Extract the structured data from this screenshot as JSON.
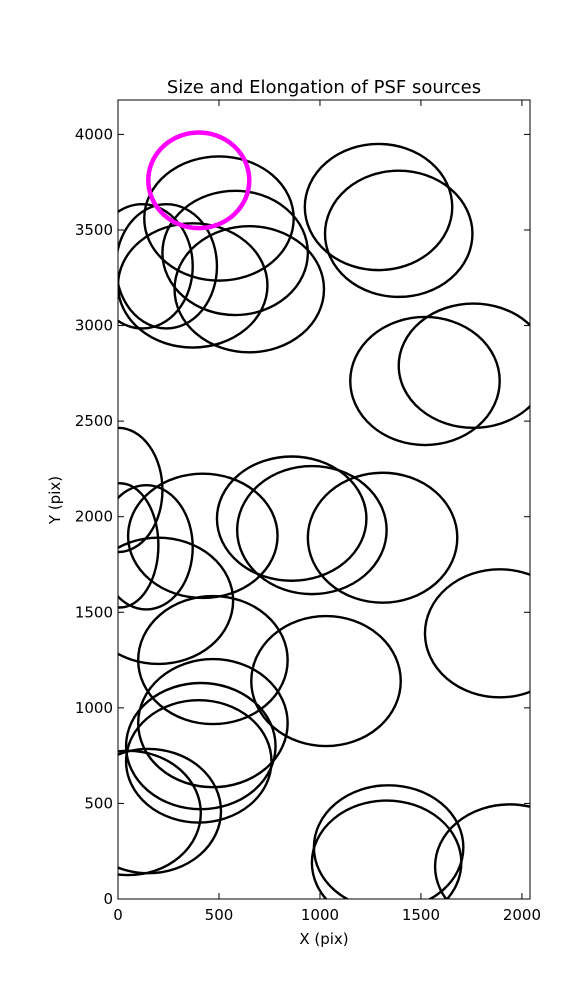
{
  "chart_data": {
    "type": "scatter",
    "title": "Size and Elongation of PSF sources",
    "xlabel": "X (pix)",
    "ylabel": "Y (pix)",
    "xlim": [
      0,
      2040
    ],
    "ylim": [
      0,
      4180
    ],
    "xticks": [
      0,
      500,
      1000,
      1500,
      2000
    ],
    "yticks": [
      0,
      500,
      1000,
      1500,
      2000,
      2500,
      3000,
      3500,
      4000
    ],
    "highlight_color": "#ff00ff",
    "source_color": "#000000",
    "sources": [
      {
        "x": 500,
        "y": 3560,
        "w": 740,
        "h": 650
      },
      {
        "x": 580,
        "y": 3380,
        "w": 720,
        "h": 650
      },
      {
        "x": 370,
        "y": 3210,
        "w": 740,
        "h": 650
      },
      {
        "x": 120,
        "y": 3310,
        "w": 500,
        "h": 650
      },
      {
        "x": 240,
        "y": 3310,
        "w": 500,
        "h": 650
      },
      {
        "x": 650,
        "y": 3190,
        "w": 740,
        "h": 660
      },
      {
        "x": 1290,
        "y": 3620,
        "w": 730,
        "h": 660
      },
      {
        "x": 1390,
        "y": 3480,
        "w": 730,
        "h": 660
      },
      {
        "x": 1520,
        "y": 2710,
        "w": 740,
        "h": 670
      },
      {
        "x": 1760,
        "y": 2790,
        "w": 740,
        "h": 650
      },
      {
        "x": 0,
        "y": 2140,
        "w": 440,
        "h": 650
      },
      {
        "x": 10,
        "y": 1850,
        "w": 380,
        "h": 650
      },
      {
        "x": 140,
        "y": 1840,
        "w": 460,
        "h": 650
      },
      {
        "x": 420,
        "y": 1900,
        "w": 740,
        "h": 650
      },
      {
        "x": 200,
        "y": 1560,
        "w": 740,
        "h": 660
      },
      {
        "x": 860,
        "y": 1990,
        "w": 740,
        "h": 650
      },
      {
        "x": 960,
        "y": 1930,
        "w": 740,
        "h": 670
      },
      {
        "x": 1310,
        "y": 1890,
        "w": 740,
        "h": 680
      },
      {
        "x": 1890,
        "y": 1390,
        "w": 740,
        "h": 670
      },
      {
        "x": 470,
        "y": 1250,
        "w": 740,
        "h": 670
      },
      {
        "x": 1030,
        "y": 1140,
        "w": 740,
        "h": 680
      },
      {
        "x": 470,
        "y": 920,
        "w": 740,
        "h": 670
      },
      {
        "x": 410,
        "y": 800,
        "w": 740,
        "h": 660
      },
      {
        "x": 400,
        "y": 720,
        "w": 720,
        "h": 640
      },
      {
        "x": 150,
        "y": 460,
        "w": 720,
        "h": 650
      },
      {
        "x": 50,
        "y": 450,
        "w": 720,
        "h": 650
      },
      {
        "x": 1340,
        "y": 270,
        "w": 740,
        "h": 650
      },
      {
        "x": 1330,
        "y": 190,
        "w": 740,
        "h": 650
      },
      {
        "x": 1940,
        "y": 170,
        "w": 740,
        "h": 650
      }
    ],
    "highlight": {
      "x": 400,
      "y": 3760,
      "w": 500,
      "h": 500
    }
  }
}
